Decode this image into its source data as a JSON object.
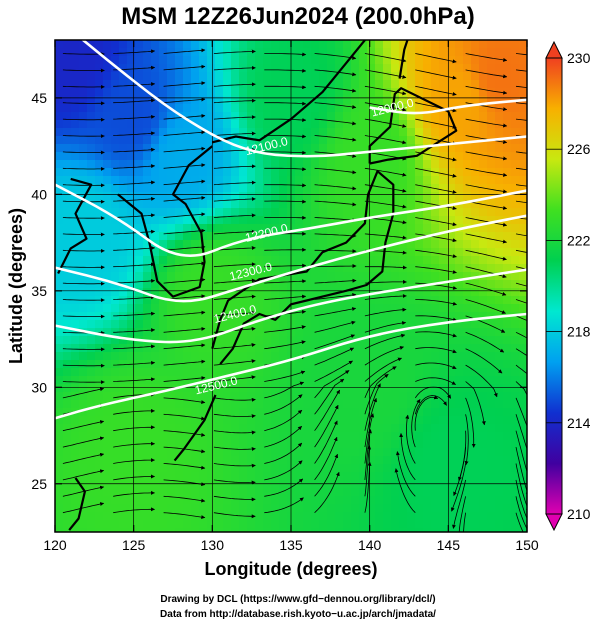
{
  "chart_data": {
    "type": "heatmap",
    "title": "MSM 12Z26Jun2024 (200.0hPa)",
    "xlabel": "Longitude (degrees)",
    "ylabel": "Latitude  (degrees)",
    "xlim": [
      120,
      150
    ],
    "ylim": [
      22.5,
      48
    ],
    "xticks": [
      "120",
      "125",
      "130",
      "135",
      "140",
      "145",
      "150"
    ],
    "yticks": [
      "25",
      "30",
      "35",
      "40",
      "45"
    ],
    "colorbar": {
      "min": 210,
      "max": 230,
      "labels": [
        "230",
        "226",
        "222",
        "218",
        "214",
        "210"
      ],
      "colors": [
        "#e000b0",
        "#4000a0",
        "#1030d0",
        "#00a0f0",
        "#00e8d0",
        "#00d050",
        "#40e020",
        "#c8e810",
        "#f8b000",
        "#f04020"
      ]
    },
    "temperature_field_note_values": [
      {
        "lon": 121,
        "lat": 47,
        "value": 214
      },
      {
        "lon": 125,
        "lat": 44,
        "value": 215
      },
      {
        "lon": 128,
        "lat": 42,
        "value": 217
      },
      {
        "lon": 122,
        "lat": 38,
        "value": 218
      },
      {
        "lon": 135,
        "lat": 45,
        "value": 221
      },
      {
        "lon": 140,
        "lat": 42,
        "value": 223
      },
      {
        "lon": 146,
        "lat": 45,
        "value": 228
      },
      {
        "lon": 148,
        "lat": 46,
        "value": 229
      },
      {
        "lon": 130,
        "lat": 35,
        "value": 223
      },
      {
        "lon": 140,
        "lat": 30,
        "value": 222
      },
      {
        "lon": 125,
        "lat": 27,
        "value": 223
      },
      {
        "lon": 145,
        "lat": 26,
        "value": 221
      }
    ],
    "contours": [
      {
        "label": "12100.0",
        "label_lon": 133.5,
        "label_lat": 42.3,
        "points": [
          [
            120,
            49.2
          ],
          [
            124,
            46.5
          ],
          [
            128,
            44
          ],
          [
            132,
            42.2
          ],
          [
            136,
            41.9
          ],
          [
            140,
            42.2
          ],
          [
            145,
            42.6
          ],
          [
            150,
            43
          ]
        ]
      },
      {
        "label": "12000.0",
        "label_lon": 141.5,
        "label_lat": 44.3,
        "points": [
          [
            140,
            44.5
          ],
          [
            143,
            44.1
          ],
          [
            146,
            44.6
          ],
          [
            150,
            44.9
          ]
        ]
      },
      {
        "label": "12200.0",
        "label_lon": 133.5,
        "label_lat": 37.8,
        "points": [
          [
            120,
            40.5
          ],
          [
            124,
            38.8
          ],
          [
            128,
            36.4
          ],
          [
            132,
            37.7
          ],
          [
            136,
            38.2
          ],
          [
            140,
            38.8
          ],
          [
            145,
            39.4
          ],
          [
            150,
            40.2
          ]
        ]
      },
      {
        "label": "12300.0",
        "label_lon": 132.5,
        "label_lat": 35.8,
        "points": [
          [
            120,
            36.2
          ],
          [
            124,
            35.4
          ],
          [
            128,
            34.2
          ],
          [
            132,
            35.2
          ],
          [
            136,
            36.2
          ],
          [
            140,
            37.1
          ],
          [
            145,
            38.1
          ],
          [
            150,
            38.9
          ]
        ]
      },
      {
        "label": "12400.0",
        "label_lon": 131.5,
        "label_lat": 33.6,
        "points": [
          [
            120,
            33.2
          ],
          [
            125,
            32.4
          ],
          [
            129,
            32.3
          ],
          [
            133,
            33.5
          ],
          [
            137,
            34.4
          ],
          [
            142,
            35.1
          ],
          [
            146,
            35.6
          ],
          [
            150,
            36.1
          ]
        ]
      },
      {
        "label": "12500.0",
        "label_lon": 130.3,
        "label_lat": 29.9,
        "points": [
          [
            120,
            28.4
          ],
          [
            123,
            29.1
          ],
          [
            127,
            29.8
          ],
          [
            131,
            30.6
          ],
          [
            135,
            31.4
          ],
          [
            140,
            32.7
          ],
          [
            145,
            33.4
          ],
          [
            150,
            33.8
          ]
        ]
      }
    ],
    "grid": true
  },
  "credits": {
    "line1": "Drawing by DCL (https://www.gfd−dennou.org/library/dcl/)",
    "line2": "Data from http://database.rish.kyoto−u.ac.jp/arch/jmadata/"
  }
}
